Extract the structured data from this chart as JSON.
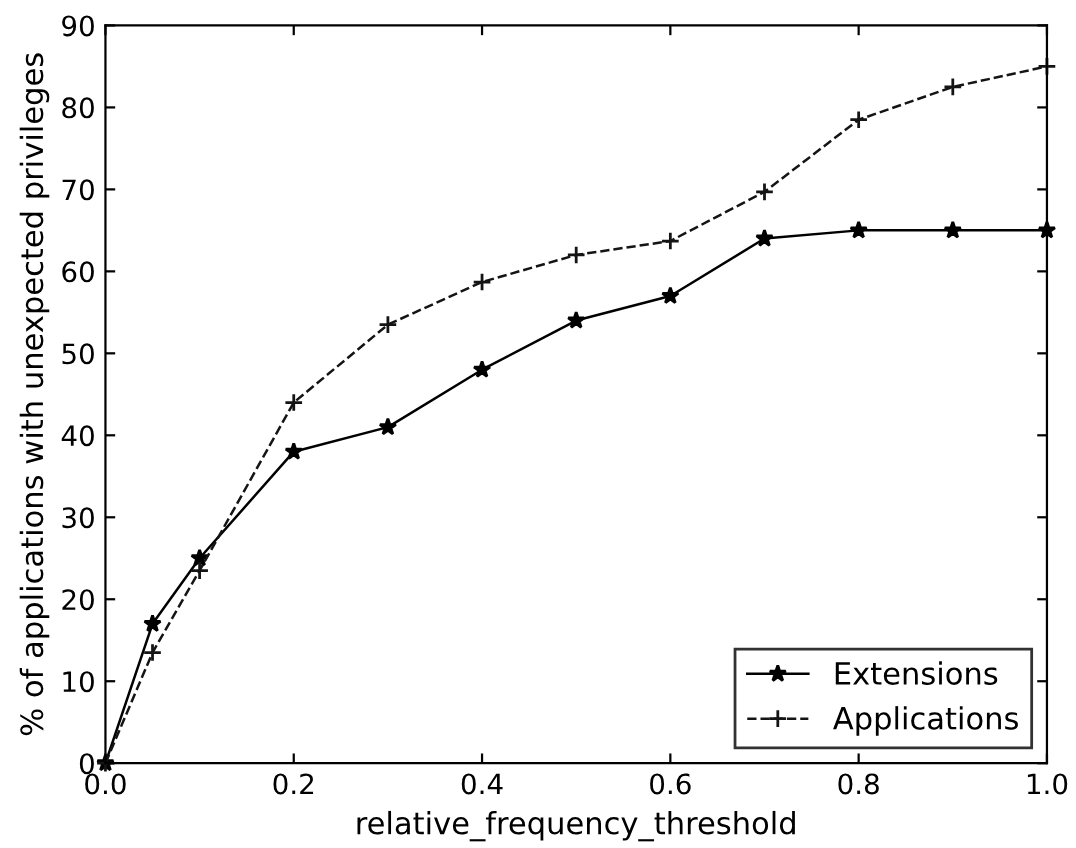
{
  "chart_data": {
    "type": "line",
    "xlabel": "relative_frequency_threshold",
    "ylabel": "% of applications with unexpected privileges",
    "xlim": [
      0,
      1
    ],
    "ylim": [
      0,
      90
    ],
    "xticks": [
      {
        "value": 0,
        "label": "0.0"
      },
      {
        "value": 0.2,
        "label": "0.2"
      },
      {
        "value": 0.4,
        "label": "0.4"
      },
      {
        "value": 0.6,
        "label": "0.6"
      },
      {
        "value": 0.8,
        "label": "0.8"
      },
      {
        "value": 1,
        "label": "1.0"
      }
    ],
    "yticks": [
      0,
      10,
      20,
      30,
      40,
      50,
      60,
      70,
      80,
      90
    ],
    "x": [
      0,
      0.05,
      0.1,
      0.2,
      0.3,
      0.4,
      0.5,
      0.6,
      0.7,
      0.8,
      0.9,
      1.0
    ],
    "series": [
      {
        "name": "Extensions",
        "color": "#000000",
        "marker": "star",
        "line_style": "solid",
        "values": [
          0,
          17,
          25,
          38,
          41,
          48,
          54,
          57,
          64,
          65,
          65,
          65
        ]
      },
      {
        "name": "Applications",
        "color": "#141414",
        "marker": "cross",
        "line_style": "dashed",
        "values": [
          0,
          13.5,
          23.5,
          44,
          53.5,
          58.7,
          62,
          63.7,
          69.7,
          78.5,
          82.5,
          85
        ]
      }
    ],
    "grid": false,
    "legend": "lower right"
  }
}
